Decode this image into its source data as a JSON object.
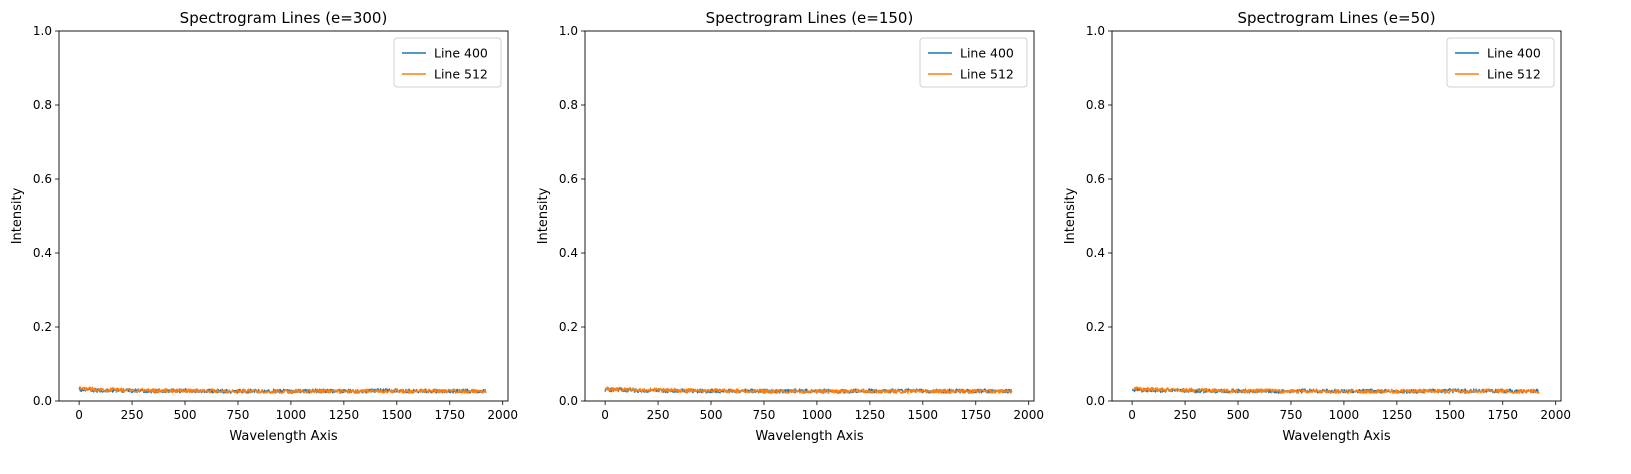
{
  "colors": {
    "line_400": "#1f77b4",
    "line_512": "#ff7f0e"
  },
  "chart_data": [
    {
      "type": "line",
      "title": "Spectrogram Lines (e=300)",
      "xlabel": "Wavelength Axis",
      "ylabel": "Intensity",
      "xlim": [
        -95,
        2025
      ],
      "ylim": [
        0,
        1
      ],
      "xticks": [
        0,
        250,
        500,
        750,
        1000,
        1250,
        1500,
        1750,
        2000
      ],
      "yticks": [
        0.0,
        0.2,
        0.4,
        0.6,
        0.8,
        1.0
      ],
      "ytick_labels": [
        "0.0",
        "0.2",
        "0.4",
        "0.6",
        "0.8",
        "1.0"
      ],
      "legend_position": "top-right",
      "grid": false,
      "x": [
        0,
        100,
        200,
        300,
        400,
        500,
        600,
        700,
        800,
        900,
        1000,
        1100,
        1200,
        1300,
        1400,
        1500,
        1600,
        1700,
        1800,
        1920
      ],
      "series": [
        {
          "name": "Line 400",
          "color": "#1f77b4",
          "values": [
            0.03,
            0.028,
            0.029,
            0.027,
            0.027,
            0.028,
            0.027,
            0.026,
            0.027,
            0.027,
            0.026,
            0.027,
            0.027,
            0.026,
            0.028,
            0.028,
            0.027,
            0.027,
            0.027,
            0.027
          ]
        },
        {
          "name": "Line 512",
          "color": "#ff7f0e",
          "values": [
            0.033,
            0.031,
            0.03,
            0.029,
            0.028,
            0.028,
            0.028,
            0.027,
            0.027,
            0.026,
            0.026,
            0.027,
            0.026,
            0.026,
            0.027,
            0.027,
            0.026,
            0.027,
            0.026,
            0.026
          ]
        }
      ]
    },
    {
      "type": "line",
      "title": "Spectrogram Lines (e=150)",
      "xlabel": "Wavelength Axis",
      "ylabel": "Intensity",
      "xlim": [
        -95,
        2025
      ],
      "ylim": [
        0,
        1
      ],
      "xticks": [
        0,
        250,
        500,
        750,
        1000,
        1250,
        1500,
        1750,
        2000
      ],
      "yticks": [
        0.0,
        0.2,
        0.4,
        0.6,
        0.8,
        1.0
      ],
      "ytick_labels": [
        "0.0",
        "0.2",
        "0.4",
        "0.6",
        "0.8",
        "1.0"
      ],
      "legend_position": "top-right",
      "grid": false,
      "x": [
        0,
        100,
        200,
        300,
        400,
        500,
        600,
        700,
        800,
        900,
        1000,
        1100,
        1200,
        1300,
        1400,
        1500,
        1600,
        1700,
        1800,
        1920
      ],
      "series": [
        {
          "name": "Line 400",
          "color": "#1f77b4",
          "values": [
            0.03,
            0.029,
            0.028,
            0.028,
            0.027,
            0.027,
            0.027,
            0.027,
            0.026,
            0.027,
            0.027,
            0.026,
            0.027,
            0.027,
            0.028,
            0.027,
            0.027,
            0.027,
            0.027,
            0.026
          ]
        },
        {
          "name": "Line 512",
          "color": "#ff7f0e",
          "values": [
            0.033,
            0.031,
            0.03,
            0.029,
            0.028,
            0.028,
            0.027,
            0.027,
            0.026,
            0.026,
            0.026,
            0.026,
            0.027,
            0.026,
            0.026,
            0.027,
            0.026,
            0.026,
            0.026,
            0.026
          ]
        }
      ]
    },
    {
      "type": "line",
      "title": "Spectrogram Lines (e=50)",
      "xlabel": "Wavelength Axis",
      "ylabel": "Intensity",
      "xlim": [
        -95,
        2025
      ],
      "ylim": [
        0,
        1
      ],
      "xticks": [
        0,
        250,
        500,
        750,
        1000,
        1250,
        1500,
        1750,
        2000
      ],
      "yticks": [
        0.0,
        0.2,
        0.4,
        0.6,
        0.8,
        1.0
      ],
      "ytick_labels": [
        "0.0",
        "0.2",
        "0.4",
        "0.6",
        "0.8",
        "1.0"
      ],
      "legend_position": "top-right",
      "grid": false,
      "x": [
        0,
        100,
        200,
        300,
        400,
        500,
        600,
        700,
        800,
        900,
        1000,
        1100,
        1200,
        1300,
        1400,
        1500,
        1600,
        1700,
        1800,
        1920
      ],
      "series": [
        {
          "name": "Line 400",
          "color": "#1f77b4",
          "values": [
            0.03,
            0.028,
            0.029,
            0.027,
            0.027,
            0.027,
            0.027,
            0.026,
            0.027,
            0.027,
            0.026,
            0.027,
            0.027,
            0.026,
            0.027,
            0.028,
            0.027,
            0.027,
            0.027,
            0.026
          ]
        },
        {
          "name": "Line 512",
          "color": "#ff7f0e",
          "values": [
            0.033,
            0.031,
            0.03,
            0.029,
            0.028,
            0.027,
            0.027,
            0.027,
            0.027,
            0.026,
            0.026,
            0.026,
            0.026,
            0.026,
            0.027,
            0.026,
            0.026,
            0.027,
            0.026,
            0.026
          ]
        }
      ]
    }
  ]
}
